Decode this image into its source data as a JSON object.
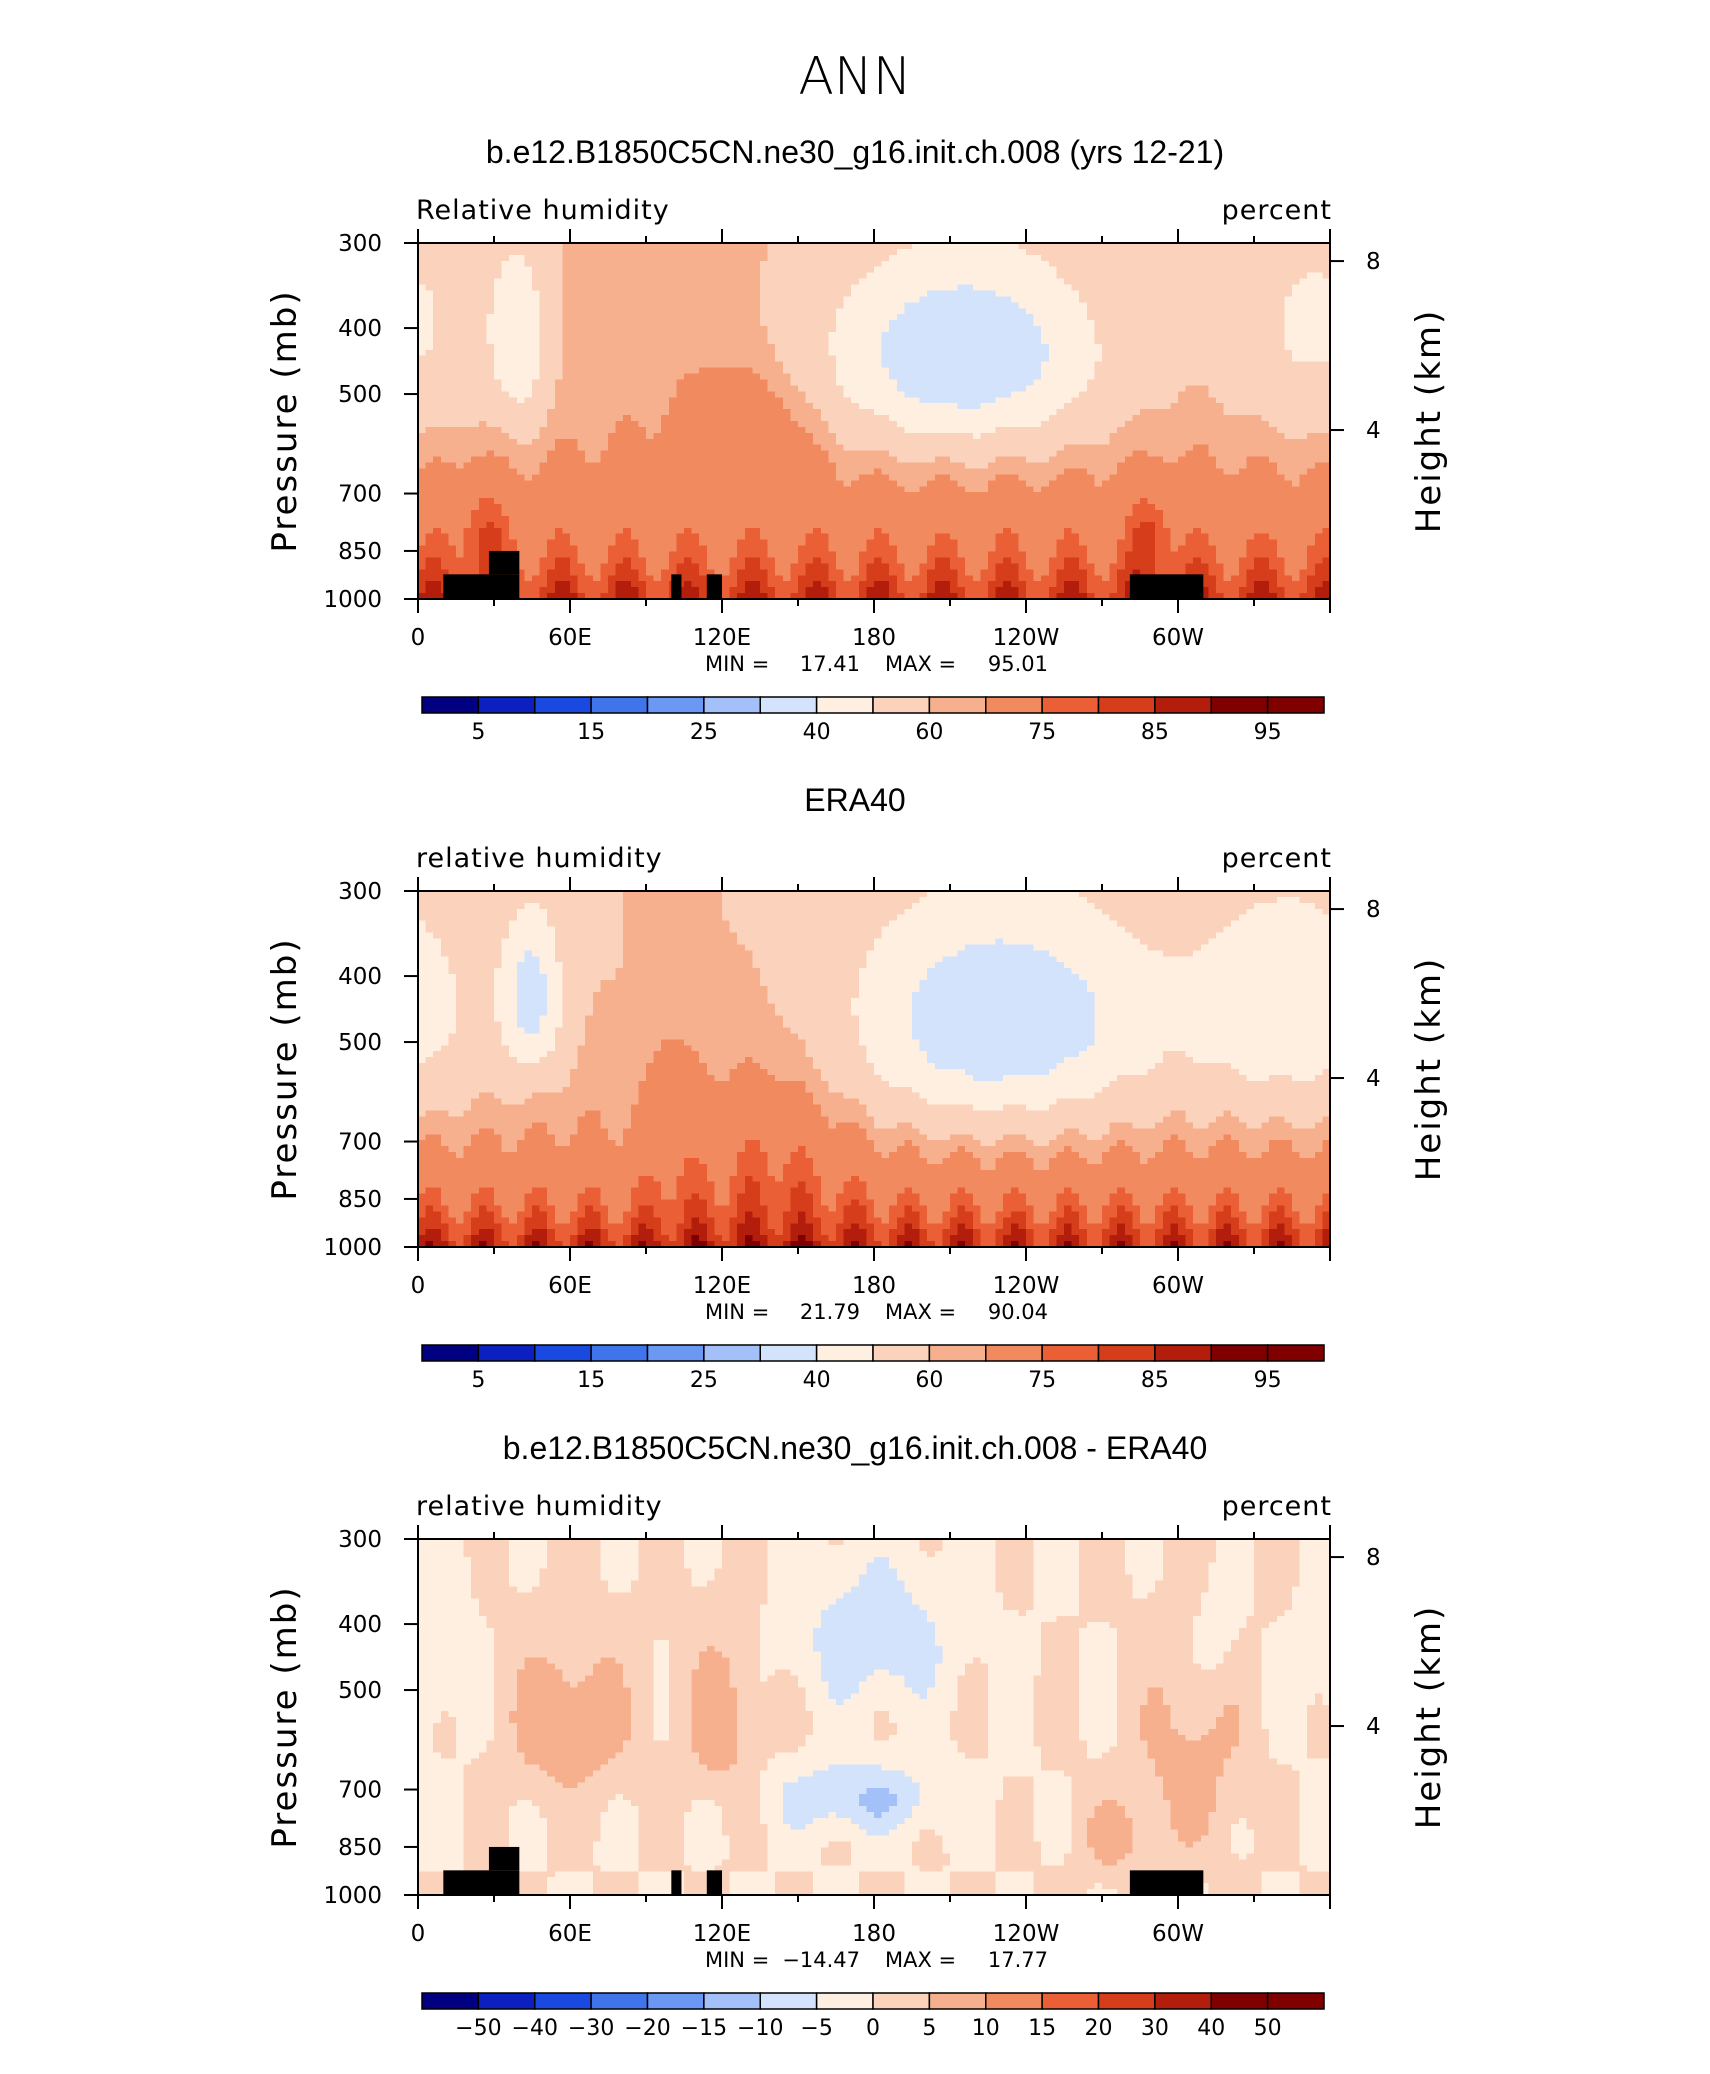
{
  "figure_title": "ANN",
  "colors": {
    "abs_levels": [
      "#000080",
      "#0c1fbf",
      "#1a49e0",
      "#3f74eb",
      "#6a98f3",
      "#a3c0f8",
      "#d2e3fb",
      "#feefe0",
      "#fbd3bd",
      "#f7b08e",
      "#f28a5f",
      "#ea5f35",
      "#d63d1a",
      "#b21e0b",
      "#800000"
    ],
    "diff_levels": [
      "#000080",
      "#0c1fbf",
      "#1a49e0",
      "#3f74eb",
      "#6a98f3",
      "#a3c0f8",
      "#d2e3fb",
      "#feefe0",
      "#fbd3bd",
      "#f7b08e",
      "#f28a5f",
      "#ea5f35",
      "#d63d1a",
      "#b21e0b",
      "#800000"
    ],
    "terrain": "#000000"
  },
  "chart_data": [
    {
      "type": "heatmap",
      "title": "b.e12.B1850C5CN.ne30_g16.init.ch.008 (yrs 12-21)",
      "left_label": "Relative humidity",
      "right_label": "percent",
      "ylabel": "Pressure (mb)",
      "ylabel_right": "Height (km)",
      "x_ticks": [
        "0",
        "60E",
        "120E",
        "180",
        "120W",
        "60W"
      ],
      "x_tick_values": [
        0,
        60,
        120,
        180,
        240,
        300
      ],
      "xlim": [
        0,
        360
      ],
      "y_ticks": [
        "300",
        "400",
        "500",
        "700",
        "850",
        "1000"
      ],
      "y_tick_values": [
        300,
        400,
        500,
        700,
        850,
        1000
      ],
      "ylim": [
        300,
        1000
      ],
      "height_ticks": [
        "8",
        "4"
      ],
      "height_tick_values": [
        8,
        4
      ],
      "min_label": "MIN =",
      "min_value": "17.41",
      "max_label": "MAX =",
      "max_value": "95.01",
      "colorbar_labels": [
        "5",
        "15",
        "25",
        "40",
        "60",
        "75",
        "85",
        "95"
      ],
      "colorbar_levels": [
        5,
        10,
        15,
        20,
        25,
        30,
        40,
        50,
        60,
        65,
        75,
        80,
        85,
        90,
        95
      ],
      "field_min": 17.41,
      "field_max": 95.01,
      "terrain": true
    },
    {
      "type": "heatmap",
      "title": "ERA40",
      "left_label": "relative humidity",
      "right_label": "percent",
      "ylabel": "Pressure (mb)",
      "ylabel_right": "Height (km)",
      "x_ticks": [
        "0",
        "60E",
        "120E",
        "180",
        "120W",
        "60W"
      ],
      "x_tick_values": [
        0,
        60,
        120,
        180,
        240,
        300
      ],
      "xlim": [
        0,
        360
      ],
      "y_ticks": [
        "300",
        "400",
        "500",
        "700",
        "850",
        "1000"
      ],
      "y_tick_values": [
        300,
        400,
        500,
        700,
        850,
        1000
      ],
      "ylim": [
        300,
        1000
      ],
      "height_ticks": [
        "8",
        "4"
      ],
      "height_tick_values": [
        8,
        4
      ],
      "min_label": "MIN =",
      "min_value": "21.79",
      "max_label": "MAX =",
      "max_value": "90.04",
      "colorbar_labels": [
        "5",
        "15",
        "25",
        "40",
        "60",
        "75",
        "85",
        "95"
      ],
      "colorbar_levels": [
        5,
        10,
        15,
        20,
        25,
        30,
        40,
        50,
        60,
        65,
        75,
        80,
        85,
        90,
        95
      ],
      "field_min": 21.79,
      "field_max": 90.04,
      "terrain": false
    },
    {
      "type": "heatmap",
      "title": "b.e12.B1850C5CN.ne30_g16.init.ch.008 - ERA40",
      "left_label": "relative humidity",
      "right_label": "percent",
      "ylabel": "Pressure (mb)",
      "ylabel_right": "Height (km)",
      "x_ticks": [
        "0",
        "60E",
        "120E",
        "180",
        "120W",
        "60W"
      ],
      "x_tick_values": [
        0,
        60,
        120,
        180,
        240,
        300
      ],
      "xlim": [
        0,
        360
      ],
      "y_ticks": [
        "300",
        "400",
        "500",
        "700",
        "850",
        "1000"
      ],
      "y_tick_values": [
        300,
        400,
        500,
        700,
        850,
        1000
      ],
      "ylim": [
        300,
        1000
      ],
      "height_ticks": [
        "8",
        "4"
      ],
      "height_tick_values": [
        8,
        4
      ],
      "min_label": "MIN =",
      "min_value": "−14.47",
      "max_label": "MAX =",
      "max_value": "17.77",
      "colorbar_labels": [
        "−50",
        "−40",
        "−30",
        "−20",
        "−15",
        "−10",
        "−5",
        "0",
        "5",
        "10",
        "15",
        "20",
        "30",
        "40",
        "50"
      ],
      "colorbar_levels": [
        -50,
        -40,
        -30,
        -20,
        -15,
        -10,
        -5,
        0,
        5,
        10,
        15,
        20,
        30,
        40,
        50
      ],
      "field_min": -14.47,
      "field_max": 17.77,
      "terrain": true
    }
  ]
}
